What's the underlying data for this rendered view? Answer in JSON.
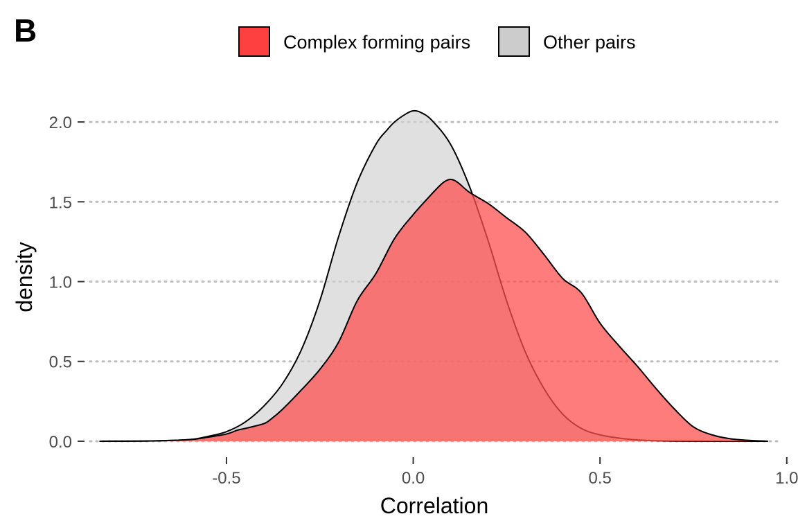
{
  "panel_label": "B",
  "chart_data": {
    "type": "area",
    "title": "",
    "xlabel": "Correlation",
    "ylabel": "density",
    "xlim": [
      -0.88,
      0.98
    ],
    "ylim": [
      -0.1,
      2.2
    ],
    "x_ticks": [
      -0.5,
      0.0,
      0.5,
      1.0
    ],
    "x_tick_labels": [
      "-0.5",
      "0.0",
      "0.5",
      "1.0"
    ],
    "y_ticks": [
      0.0,
      0.5,
      1.0,
      1.5,
      2.0
    ],
    "y_tick_labels": [
      "0.0",
      "0.5",
      "1.0",
      "1.5",
      "2.0"
    ],
    "grid": "horizontal dotted",
    "legend_position": "top",
    "series": [
      {
        "name": "Complex forming pairs",
        "legend_color": "#ff4040",
        "fill": "#ff5050",
        "fill_opacity": 0.75,
        "x": [
          -0.84,
          -0.7,
          -0.6,
          -0.55,
          -0.5,
          -0.47,
          -0.45,
          -0.4,
          -0.38,
          -0.35,
          -0.3,
          -0.25,
          -0.2,
          -0.15,
          -0.1,
          -0.05,
          0.0,
          0.05,
          0.08,
          0.1,
          0.12,
          0.15,
          0.2,
          0.25,
          0.3,
          0.35,
          0.4,
          0.45,
          0.5,
          0.55,
          0.6,
          0.65,
          0.7,
          0.75,
          0.8,
          0.85,
          0.9,
          0.95
        ],
        "y": [
          0.0,
          0.002,
          0.01,
          0.025,
          0.045,
          0.07,
          0.08,
          0.11,
          0.14,
          0.2,
          0.32,
          0.45,
          0.62,
          0.88,
          1.05,
          1.27,
          1.42,
          1.55,
          1.62,
          1.64,
          1.62,
          1.56,
          1.49,
          1.4,
          1.31,
          1.17,
          1.02,
          0.93,
          0.74,
          0.6,
          0.47,
          0.33,
          0.2,
          0.09,
          0.04,
          0.015,
          0.005,
          0.0
        ]
      },
      {
        "name": "Other pairs",
        "legend_color": "#cccccc",
        "fill": "#d3d3d3",
        "fill_opacity": 0.7,
        "x": [
          -0.84,
          -0.7,
          -0.6,
          -0.55,
          -0.5,
          -0.45,
          -0.4,
          -0.35,
          -0.3,
          -0.25,
          -0.2,
          -0.15,
          -0.1,
          -0.07,
          -0.05,
          -0.02,
          0.0,
          0.02,
          0.05,
          0.1,
          0.15,
          0.2,
          0.25,
          0.3,
          0.35,
          0.4,
          0.45,
          0.5,
          0.55,
          0.6,
          0.65,
          0.7,
          0.8,
          0.9,
          0.95
        ],
        "y": [
          0.0,
          0.002,
          0.01,
          0.03,
          0.06,
          0.12,
          0.22,
          0.36,
          0.57,
          0.88,
          1.28,
          1.62,
          1.86,
          1.95,
          2.0,
          2.05,
          2.07,
          2.06,
          2.01,
          1.86,
          1.6,
          1.26,
          0.88,
          0.56,
          0.33,
          0.17,
          0.08,
          0.04,
          0.02,
          0.008,
          0.003,
          0.001,
          0.0,
          0.0,
          0.0
        ]
      }
    ]
  }
}
